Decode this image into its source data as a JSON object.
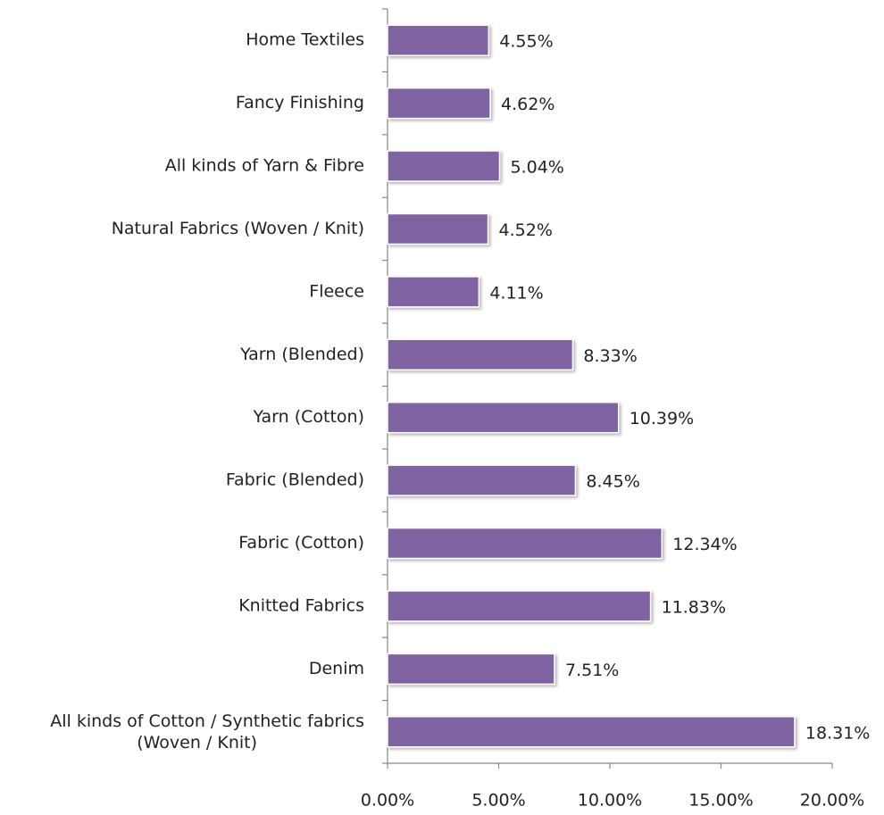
{
  "chart_data": {
    "type": "bar",
    "orientation": "horizontal",
    "categories": [
      "Home Textiles",
      "Fancy Finishing",
      "All kinds of Yarn & Fibre",
      "Natural Fabrics (Woven / Knit)",
      "Fleece",
      "Yarn (Blended)",
      "Yarn (Cotton)",
      "Fabric (Blended)",
      "Fabric (Cotton)",
      "Knitted Fabrics",
      "Denim",
      "All kinds of Cotton / Synthetic fabrics\n(Woven / Knit)"
    ],
    "values": [
      4.55,
      4.62,
      5.04,
      4.52,
      4.11,
      8.33,
      10.39,
      8.45,
      12.34,
      11.83,
      7.51,
      18.31
    ],
    "value_labels": [
      "4.55%",
      "4.62%",
      "5.04%",
      "4.52%",
      "4.11%",
      "8.33%",
      "10.39%",
      "8.45%",
      "12.34%",
      "11.83%",
      "7.51%",
      "18.31%"
    ],
    "color": "#8064a2",
    "xlim": [
      0,
      20
    ],
    "xticks": [
      {
        "value": 0,
        "label": "0.00%"
      },
      {
        "value": 5,
        "label": "5.00%"
      },
      {
        "value": 10,
        "label": "10.00%"
      },
      {
        "value": 15,
        "label": "15.00%"
      },
      {
        "value": 20,
        "label": "20.00%"
      }
    ]
  }
}
